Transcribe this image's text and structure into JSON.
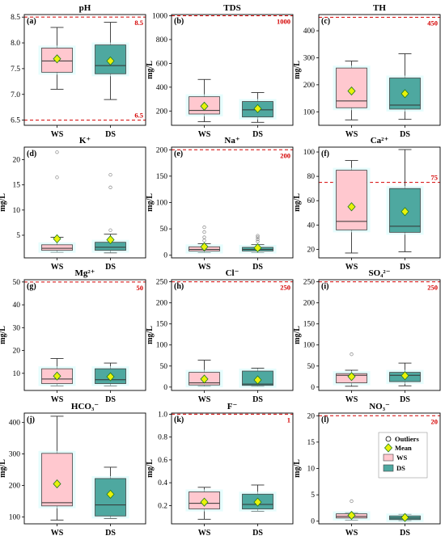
{
  "legend": {
    "outliers_label": "Outliers",
    "mean_label": "Mean",
    "ws_label": "WS",
    "ds_label": "DS"
  },
  "colors": {
    "ws_fill": "#ffc8cf",
    "ds_fill": "#4ea8a0",
    "limit": "#d40000",
    "mean_fill": "#e8f20a",
    "mean_edge": "#1f7a1f",
    "glow": "#d6fbfb"
  },
  "chart_data": [
    {
      "type": "box",
      "letter": "(a)",
      "title": "pH",
      "ylabel": "",
      "categories": [
        "WS",
        "DS"
      ],
      "ylim": [
        6.4,
        8.55
      ],
      "yticks": [
        6.5,
        7.0,
        7.5,
        8.0,
        8.5
      ],
      "yticklabels": [
        "6.5",
        "7.0",
        "7.5",
        "8.0",
        "8.5"
      ],
      "limits": [
        {
          "value": 8.5,
          "label": "8.5"
        },
        {
          "value": 6.5,
          "label": "6.5"
        }
      ],
      "series": [
        {
          "name": "WS",
          "whisker_low": 7.1,
          "q1": 7.43,
          "median": 7.65,
          "q3": 7.9,
          "whisker_high": 8.3,
          "mean": 7.69,
          "outliers": []
        },
        {
          "name": "DS",
          "whisker_low": 6.9,
          "q1": 7.4,
          "median": 7.56,
          "q3": 7.96,
          "whisker_high": 8.4,
          "mean": 7.65,
          "outliers": []
        }
      ]
    },
    {
      "type": "box",
      "letter": "(b)",
      "title": "TDS",
      "ylabel": "mg/L",
      "categories": [
        "WS",
        "DS"
      ],
      "ylim": [
        80,
        1010
      ],
      "yticks": [
        200,
        400,
        600,
        800,
        1000
      ],
      "yticklabels": [
        "200",
        "400",
        "600",
        "800",
        "1000"
      ],
      "limits": [
        {
          "value": 1000,
          "label": "1000"
        }
      ],
      "series": [
        {
          "name": "WS",
          "whisker_low": 110,
          "q1": 175,
          "median": 205,
          "q3": 320,
          "whisker_high": 465,
          "mean": 240,
          "outliers": []
        },
        {
          "name": "DS",
          "whisker_low": 105,
          "q1": 150,
          "median": 210,
          "q3": 280,
          "whisker_high": 355,
          "mean": 220,
          "outliers": []
        }
      ]
    },
    {
      "type": "box",
      "letter": "(c)",
      "title": "TH",
      "ylabel": "mg/L",
      "categories": [
        "WS",
        "DS"
      ],
      "ylim": [
        50,
        460
      ],
      "yticks": [
        100,
        200,
        300,
        400
      ],
      "yticklabels": [
        "100",
        "200",
        "300",
        "400"
      ],
      "limits": [
        {
          "value": 450,
          "label": "450"
        }
      ],
      "series": [
        {
          "name": "WS",
          "whisker_low": 70,
          "q1": 115,
          "median": 140,
          "q3": 262,
          "whisker_high": 288,
          "mean": 177,
          "outliers": []
        },
        {
          "name": "DS",
          "whisker_low": 72,
          "q1": 110,
          "median": 125,
          "q3": 225,
          "whisker_high": 315,
          "mean": 167,
          "outliers": []
        }
      ]
    },
    {
      "type": "box",
      "letter": "(d)",
      "title": "K⁺",
      "ylabel": "mg/L",
      "categories": [
        "WS",
        "DS"
      ],
      "ylim": [
        0.5,
        22.5
      ],
      "yticks": [
        5,
        10,
        15,
        20
      ],
      "yticklabels": [
        "5",
        "10",
        "15",
        "20"
      ],
      "limits": [],
      "series": [
        {
          "name": "WS",
          "whisker_low": 1.6,
          "q1": 2.0,
          "median": 2.4,
          "q3": 3.1,
          "whisker_high": 4.6,
          "mean": 4.3,
          "outliers": [
            16.5,
            21.5
          ]
        },
        {
          "name": "DS",
          "whisker_low": 1.5,
          "q1": 2.0,
          "median": 2.6,
          "q3": 3.6,
          "whisker_high": 5.2,
          "mean": 4.1,
          "outliers": [
            6.0,
            14.5,
            17.0
          ]
        }
      ]
    },
    {
      "type": "box",
      "letter": "(e)",
      "title": "Na⁺",
      "ylabel": "mg/L",
      "categories": [
        "WS",
        "DS"
      ],
      "ylim": [
        -5,
        205
      ],
      "yticks": [
        0,
        50,
        100,
        150,
        200
      ],
      "yticklabels": [
        "0",
        "50",
        "100",
        "150",
        "200"
      ],
      "limits": [
        {
          "value": 200,
          "label": "200"
        }
      ],
      "series": [
        {
          "name": "WS",
          "whisker_low": 5,
          "q1": 8,
          "median": 11,
          "q3": 16,
          "whisker_high": 22,
          "mean": 16,
          "outliers": [
            28,
            34,
            44,
            53
          ]
        },
        {
          "name": "DS",
          "whisker_low": 5,
          "q1": 8,
          "median": 11,
          "q3": 15,
          "whisker_high": 20,
          "mean": 14,
          "outliers": [
            26,
            30,
            34,
            37
          ]
        }
      ]
    },
    {
      "type": "box",
      "letter": "(f)",
      "title": "Ca²⁺",
      "ylabel": "mg/L",
      "categories": [
        "WS",
        "DS"
      ],
      "ylim": [
        13,
        104
      ],
      "yticks": [
        20,
        40,
        60,
        80,
        100
      ],
      "yticklabels": [
        "20",
        "40",
        "60",
        "80",
        "100"
      ],
      "limits": [
        {
          "value": 75,
          "label": "75"
        }
      ],
      "series": [
        {
          "name": "WS",
          "whisker_low": 17,
          "q1": 36,
          "median": 43,
          "q3": 85,
          "whisker_high": 93,
          "mean": 55,
          "outliers": []
        },
        {
          "name": "DS",
          "whisker_low": 18,
          "q1": 34,
          "median": 39,
          "q3": 70,
          "whisker_high": 102,
          "mean": 51,
          "outliers": []
        }
      ]
    },
    {
      "type": "box",
      "letter": "(g)",
      "title": "Mg²⁺",
      "ylabel": "mg/L",
      "categories": [
        "WS",
        "DS"
      ],
      "ylim": [
        2.5,
        51
      ],
      "yticks": [
        10,
        20,
        30,
        40,
        50
      ],
      "yticklabels": [
        "10",
        "20",
        "30",
        "40",
        "50"
      ],
      "limits": [
        {
          "value": 50,
          "label": "50"
        }
      ],
      "series": [
        {
          "name": "WS",
          "whisker_low": 4.5,
          "q1": 5.5,
          "median": 7.5,
          "q3": 12.0,
          "whisker_high": 16.5,
          "mean": 8.8,
          "outliers": []
        },
        {
          "name": "DS",
          "whisker_low": 4.5,
          "q1": 5.5,
          "median": 7.2,
          "q3": 12.0,
          "whisker_high": 14.5,
          "mean": 8.5,
          "outliers": []
        }
      ]
    },
    {
      "type": "box",
      "letter": "(h)",
      "title": "Cl⁻",
      "ylabel": "mg/L",
      "categories": [
        "WS",
        "DS"
      ],
      "ylim": [
        -8,
        255
      ],
      "yticks": [
        0,
        50,
        100,
        150,
        200,
        250
      ],
      "yticklabels": [
        "0",
        "50",
        "100",
        "150",
        "200",
        "250"
      ],
      "limits": [
        {
          "value": 250,
          "label": "250"
        }
      ],
      "series": [
        {
          "name": "WS",
          "whisker_low": 2,
          "q1": 5,
          "median": 10,
          "q3": 35,
          "whisker_high": 64,
          "mean": 19,
          "outliers": []
        },
        {
          "name": "DS",
          "whisker_low": 2,
          "q1": 4,
          "median": 7,
          "q3": 38,
          "whisker_high": 45,
          "mean": 17,
          "outliers": []
        }
      ]
    },
    {
      "type": "box",
      "letter": "(i)",
      "title": "SO₄²⁻",
      "ylabel": "mg/L",
      "categories": [
        "WS",
        "DS"
      ],
      "ylim": [
        -8,
        255
      ],
      "yticks": [
        0,
        50,
        100,
        150,
        200,
        250
      ],
      "yticklabels": [
        "0",
        "50",
        "100",
        "150",
        "200",
        "250"
      ],
      "limits": [
        {
          "value": 250,
          "label": "250"
        }
      ],
      "series": [
        {
          "name": "WS",
          "whisker_low": 2,
          "q1": 10,
          "median": 28,
          "q3": 32,
          "whisker_high": 40,
          "mean": 25,
          "outliers": [
            78
          ]
        },
        {
          "name": "DS",
          "whisker_low": 3,
          "q1": 13,
          "median": 28,
          "q3": 35,
          "whisker_high": 57,
          "mean": 27,
          "outliers": []
        }
      ]
    },
    {
      "type": "box",
      "letter": "(j)",
      "title": "HCO₃⁻",
      "ylabel": "mg/L",
      "categories": [
        "WS",
        "DS"
      ],
      "ylim": [
        78,
        430
      ],
      "yticks": [
        100,
        200,
        300,
        400
      ],
      "yticklabels": [
        "100",
        "200",
        "300",
        "400"
      ],
      "limits": [],
      "series": [
        {
          "name": "WS",
          "whisker_low": 90,
          "q1": 135,
          "median": 145,
          "q3": 302,
          "whisker_high": 420,
          "mean": 205,
          "outliers": []
        },
        {
          "name": "DS",
          "whisker_low": 95,
          "q1": 103,
          "median": 138,
          "q3": 222,
          "whisker_high": 258,
          "mean": 172,
          "outliers": []
        }
      ]
    },
    {
      "type": "box",
      "letter": "(k)",
      "title": "F⁻",
      "ylabel": "mg/L",
      "categories": [
        "WS",
        "DS"
      ],
      "ylim": [
        0.04,
        1.01
      ],
      "yticks": [
        0.2,
        0.4,
        0.6,
        0.8,
        1.0
      ],
      "yticklabels": [
        "0.2",
        "0.4",
        "0.6",
        "0.8",
        "1.0"
      ],
      "limits": [
        {
          "value": 1.0,
          "label": "1"
        }
      ],
      "series": [
        {
          "name": "WS",
          "whisker_low": 0.08,
          "q1": 0.17,
          "median": 0.22,
          "q3": 0.32,
          "whisker_high": 0.36,
          "mean": 0.23,
          "outliers": []
        },
        {
          "name": "DS",
          "whisker_low": 0.15,
          "q1": 0.17,
          "median": 0.21,
          "q3": 0.3,
          "whisker_high": 0.38,
          "mean": 0.23,
          "outliers": []
        }
      ]
    },
    {
      "type": "box",
      "letter": "(l)",
      "title": "NO₃⁻",
      "ylabel": "mg/L",
      "categories": [
        "WS",
        "DS"
      ],
      "ylim": [
        -0.5,
        20.5
      ],
      "yticks": [
        0,
        5,
        10,
        15,
        20
      ],
      "yticklabels": [
        "0",
        "5",
        "10",
        "15",
        "20"
      ],
      "limits": [
        {
          "value": 20,
          "label": "20"
        }
      ],
      "series": [
        {
          "name": "WS",
          "whisker_low": 0.2,
          "q1": 0.6,
          "median": 0.9,
          "q3": 1.4,
          "whisker_high": 1.6,
          "mean": 1.1,
          "outliers": [
            3.8
          ]
        },
        {
          "name": "DS",
          "whisker_low": 0.1,
          "q1": 0.3,
          "median": 0.6,
          "q3": 1.0,
          "whisker_high": 1.3,
          "mean": 0.7,
          "outliers": []
        }
      ]
    }
  ]
}
